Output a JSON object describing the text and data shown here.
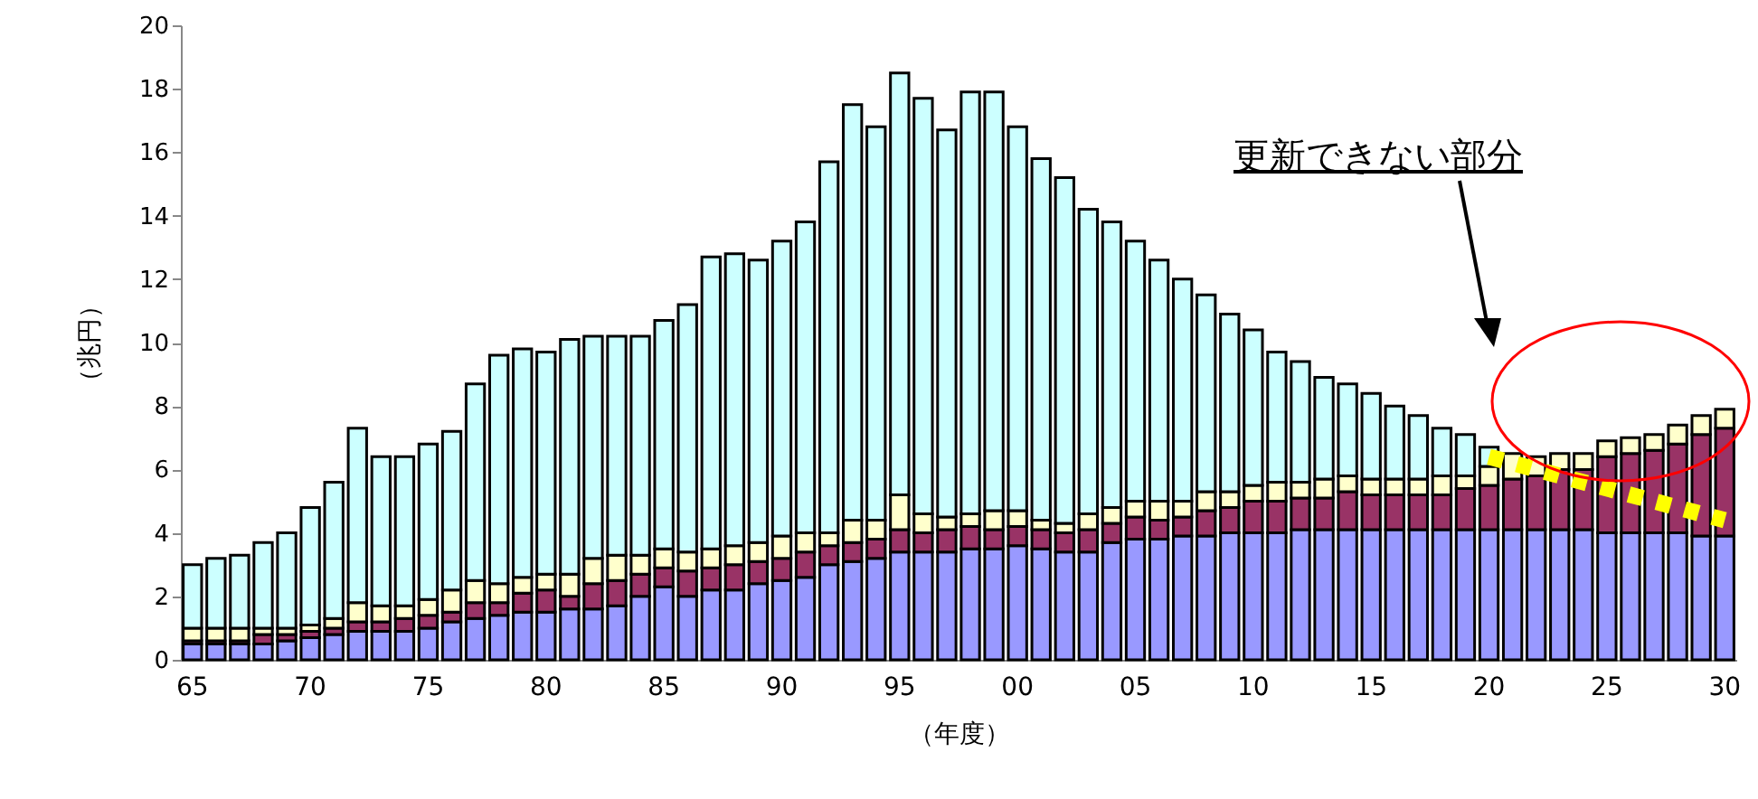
{
  "chart_data": {
    "type": "bar",
    "stacked": true,
    "xlabel": "（年度）",
    "ylabel": "（兆円）",
    "annotations": [
      "更新できない部分"
    ],
    "categories": [
      "65",
      null,
      null,
      null,
      null,
      "70",
      null,
      null,
      null,
      null,
      "75",
      null,
      null,
      null,
      null,
      "80",
      null,
      null,
      null,
      null,
      "85",
      null,
      null,
      null,
      null,
      "90",
      null,
      null,
      null,
      null,
      "95",
      null,
      null,
      null,
      null,
      "00",
      null,
      null,
      null,
      null,
      "05",
      null,
      null,
      null,
      null,
      "10",
      null,
      null,
      null,
      null,
      "15",
      null,
      null,
      null,
      null,
      "20",
      null,
      null,
      null,
      null,
      "25",
      null,
      null,
      null,
      null,
      "30"
    ],
    "ylim": [
      0,
      20
    ],
    "yticks": [
      0,
      2,
      4,
      6,
      8,
      10,
      12,
      14,
      16,
      18,
      20
    ],
    "grid": false,
    "series": [
      {
        "color": "#9999ff",
        "values": [
          0.5,
          0.5,
          0.5,
          0.5,
          0.6,
          0.7,
          0.8,
          0.9,
          0.9,
          0.9,
          1.0,
          1.2,
          1.3,
          1.4,
          1.5,
          1.5,
          1.6,
          1.6,
          1.7,
          2.0,
          2.3,
          2.0,
          2.2,
          2.2,
          2.4,
          2.5,
          2.6,
          3.0,
          3.1,
          3.2,
          3.4,
          3.4,
          3.4,
          3.5,
          3.5,
          3.6,
          3.5,
          3.4,
          3.4,
          3.7,
          3.8,
          3.8,
          3.9,
          3.9,
          4.0,
          4.0,
          4.0,
          4.1,
          4.1,
          4.1,
          4.1,
          4.1,
          4.1,
          4.1,
          4.1,
          4.1,
          4.1,
          4.1,
          4.1,
          4.1,
          4.0,
          4.0,
          4.0,
          4.0,
          3.9,
          3.9
        ]
      },
      {
        "color": "#993366",
        "values": [
          0.1,
          0.1,
          0.1,
          0.3,
          0.2,
          0.2,
          0.2,
          0.3,
          0.3,
          0.4,
          0.4,
          0.3,
          0.5,
          0.4,
          0.6,
          0.7,
          0.4,
          0.8,
          0.8,
          0.7,
          0.6,
          0.8,
          0.7,
          0.8,
          0.7,
          0.7,
          0.8,
          0.6,
          0.6,
          0.6,
          0.7,
          0.6,
          0.7,
          0.7,
          0.6,
          0.6,
          0.6,
          0.6,
          0.7,
          0.6,
          0.7,
          0.6,
          0.6,
          0.8,
          0.8,
          1.0,
          1.0,
          1.0,
          1.0,
          1.2,
          1.1,
          1.1,
          1.1,
          1.1,
          1.3,
          1.4,
          1.6,
          1.7,
          1.9,
          1.9,
          2.4,
          2.5,
          2.6,
          2.8,
          3.2,
          3.4
        ]
      },
      {
        "color": "#ffffcc",
        "values": [
          0.4,
          0.4,
          0.4,
          0.2,
          0.2,
          0.2,
          0.3,
          0.6,
          0.5,
          0.4,
          0.5,
          0.7,
          0.7,
          0.6,
          0.5,
          0.5,
          0.7,
          0.8,
          0.8,
          0.6,
          0.6,
          0.6,
          0.6,
          0.6,
          0.6,
          0.7,
          0.6,
          0.4,
          0.7,
          0.6,
          1.1,
          0.6,
          0.4,
          0.4,
          0.6,
          0.5,
          0.3,
          0.3,
          0.5,
          0.5,
          0.5,
          0.6,
          0.5,
          0.6,
          0.5,
          0.5,
          0.6,
          0.5,
          0.6,
          0.5,
          0.5,
          0.5,
          0.5,
          0.6,
          0.4,
          0.6,
          0.8,
          0.6,
          0.5,
          0.5,
          0.5,
          0.5,
          0.5,
          0.6,
          0.6,
          0.6
        ]
      },
      {
        "color": "#ccffff",
        "values": [
          2.0,
          2.2,
          2.3,
          2.7,
          3.0,
          3.7,
          4.3,
          5.5,
          4.7,
          4.7,
          4.9,
          5.0,
          6.2,
          7.2,
          7.2,
          7.0,
          7.4,
          7.0,
          6.9,
          6.9,
          7.2,
          7.8,
          9.2,
          9.2,
          8.9,
          9.3,
          9.8,
          11.7,
          13.1,
          12.4,
          13.3,
          13.1,
          12.2,
          13.3,
          13.2,
          12.1,
          11.4,
          10.9,
          9.6,
          9.0,
          8.2,
          7.6,
          7.0,
          6.2,
          5.6,
          4.9,
          4.1,
          3.8,
          3.2,
          2.9,
          2.7,
          2.3,
          2.0,
          1.5,
          1.3,
          0.6,
          null,
          null,
          null,
          null,
          null,
          null,
          null,
          null,
          null,
          null
        ]
      },
      {
        "type": "line",
        "color": "#ffff00",
        "line_style": "dotted",
        "values": [
          null,
          null,
          null,
          null,
          null,
          null,
          null,
          null,
          null,
          null,
          null,
          null,
          null,
          null,
          null,
          null,
          null,
          null,
          null,
          null,
          null,
          null,
          null,
          null,
          null,
          null,
          null,
          null,
          null,
          null,
          null,
          null,
          null,
          null,
          null,
          null,
          null,
          null,
          null,
          null,
          null,
          null,
          null,
          null,
          null,
          null,
          null,
          null,
          null,
          null,
          null,
          null,
          null,
          null,
          null,
          6.4,
          null,
          null,
          null,
          null,
          null,
          null,
          null,
          null,
          null,
          4.4
        ]
      }
    ]
  }
}
